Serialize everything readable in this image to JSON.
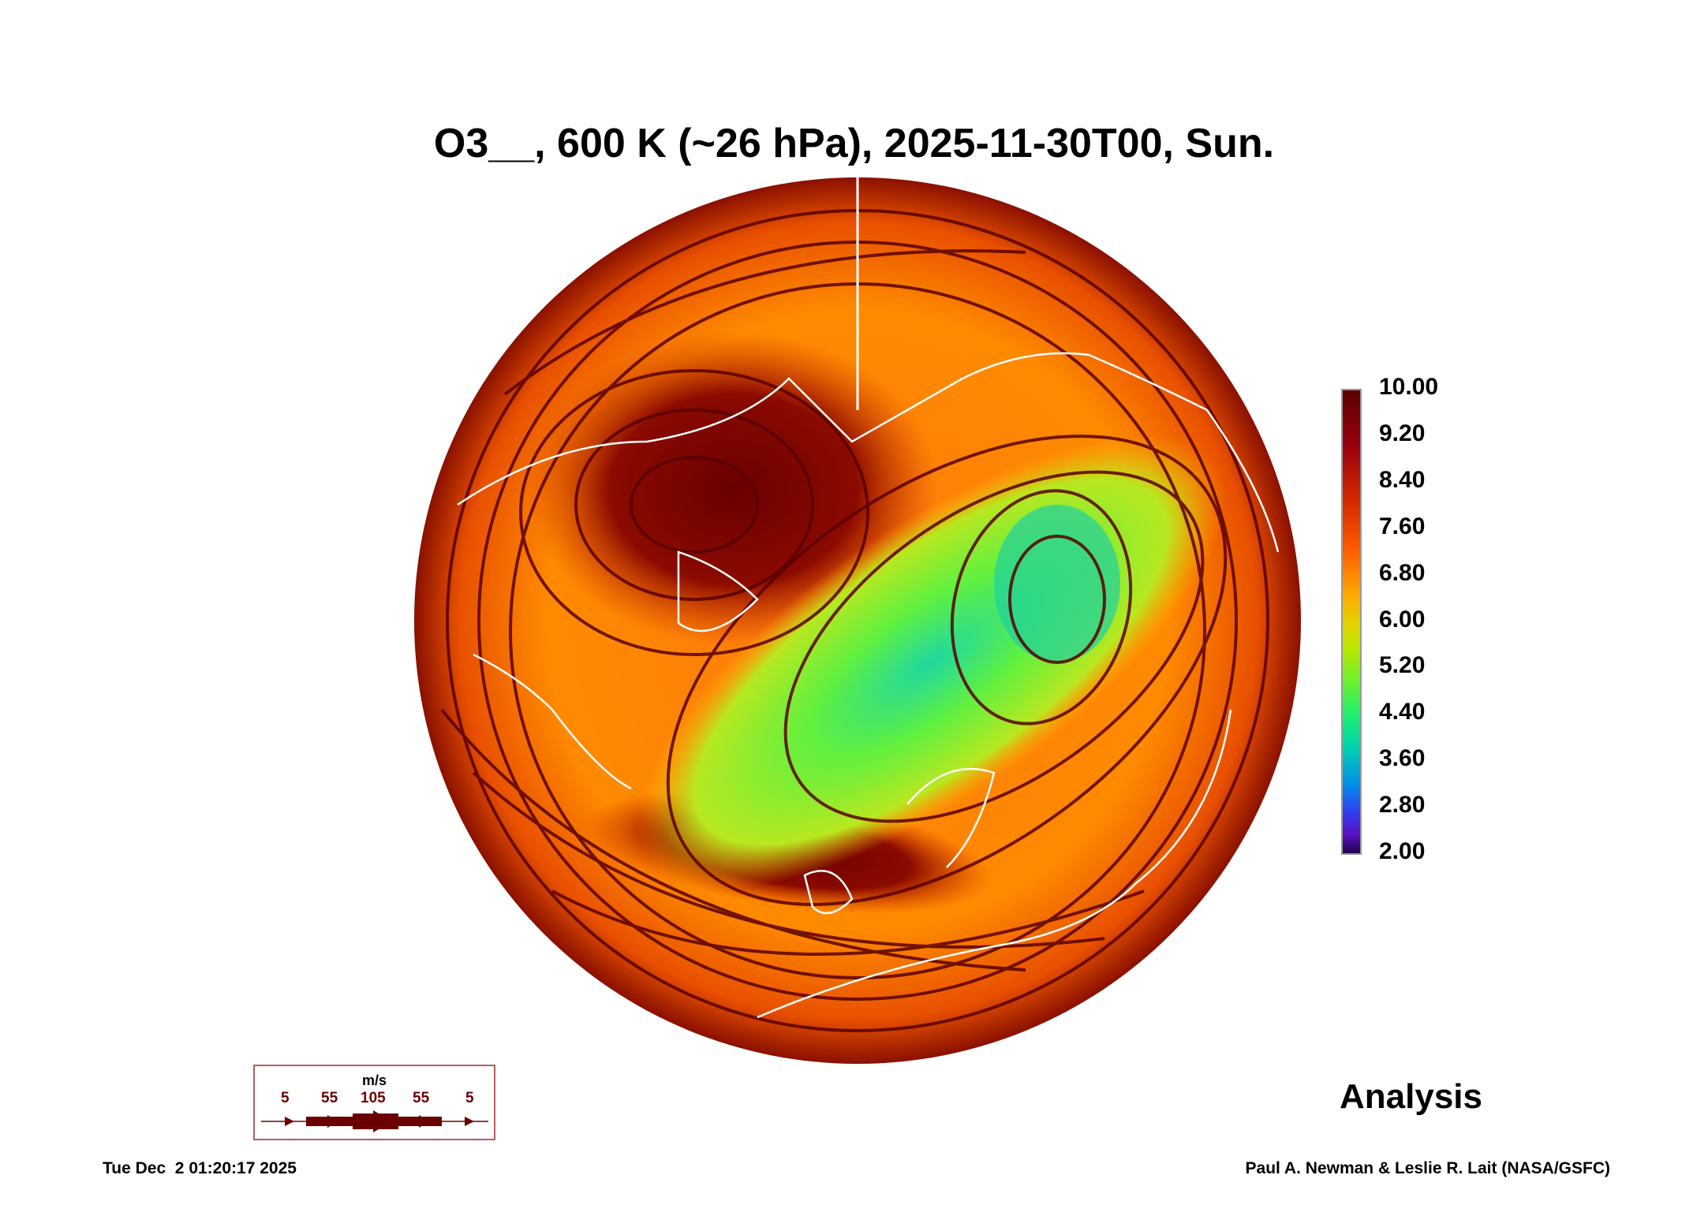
{
  "chart_data": {
    "type": "heatmap",
    "title": "O3__, 600 K (~26 hPa), 2025-11-30T00, Sun.",
    "projection": "north polar stereographic",
    "field": "O3 mixing ratio",
    "colorbar": {
      "min": 2.0,
      "max": 10.0,
      "ticks": [
        "10.00",
        "9.20",
        "8.40",
        "7.60",
        "6.80",
        "6.00",
        "5.20",
        "4.40",
        "3.60",
        "2.80",
        "2.00"
      ]
    },
    "wind_legend": {
      "unit": "m/s",
      "values": [
        "5",
        "55",
        "105",
        "55",
        "5"
      ]
    },
    "label": "Analysis",
    "colors": {
      "streamline": "#5a0000",
      "coast": "#ffffff",
      "low": "#30f070",
      "high": "#7a0000",
      "mid": "#ff6a00"
    }
  },
  "footer": {
    "timestamp": "Tue Dec  2 01:20:17 2025",
    "credit": "Paul A. Newman & Leslie R. Lait (NASA/GSFC)"
  }
}
